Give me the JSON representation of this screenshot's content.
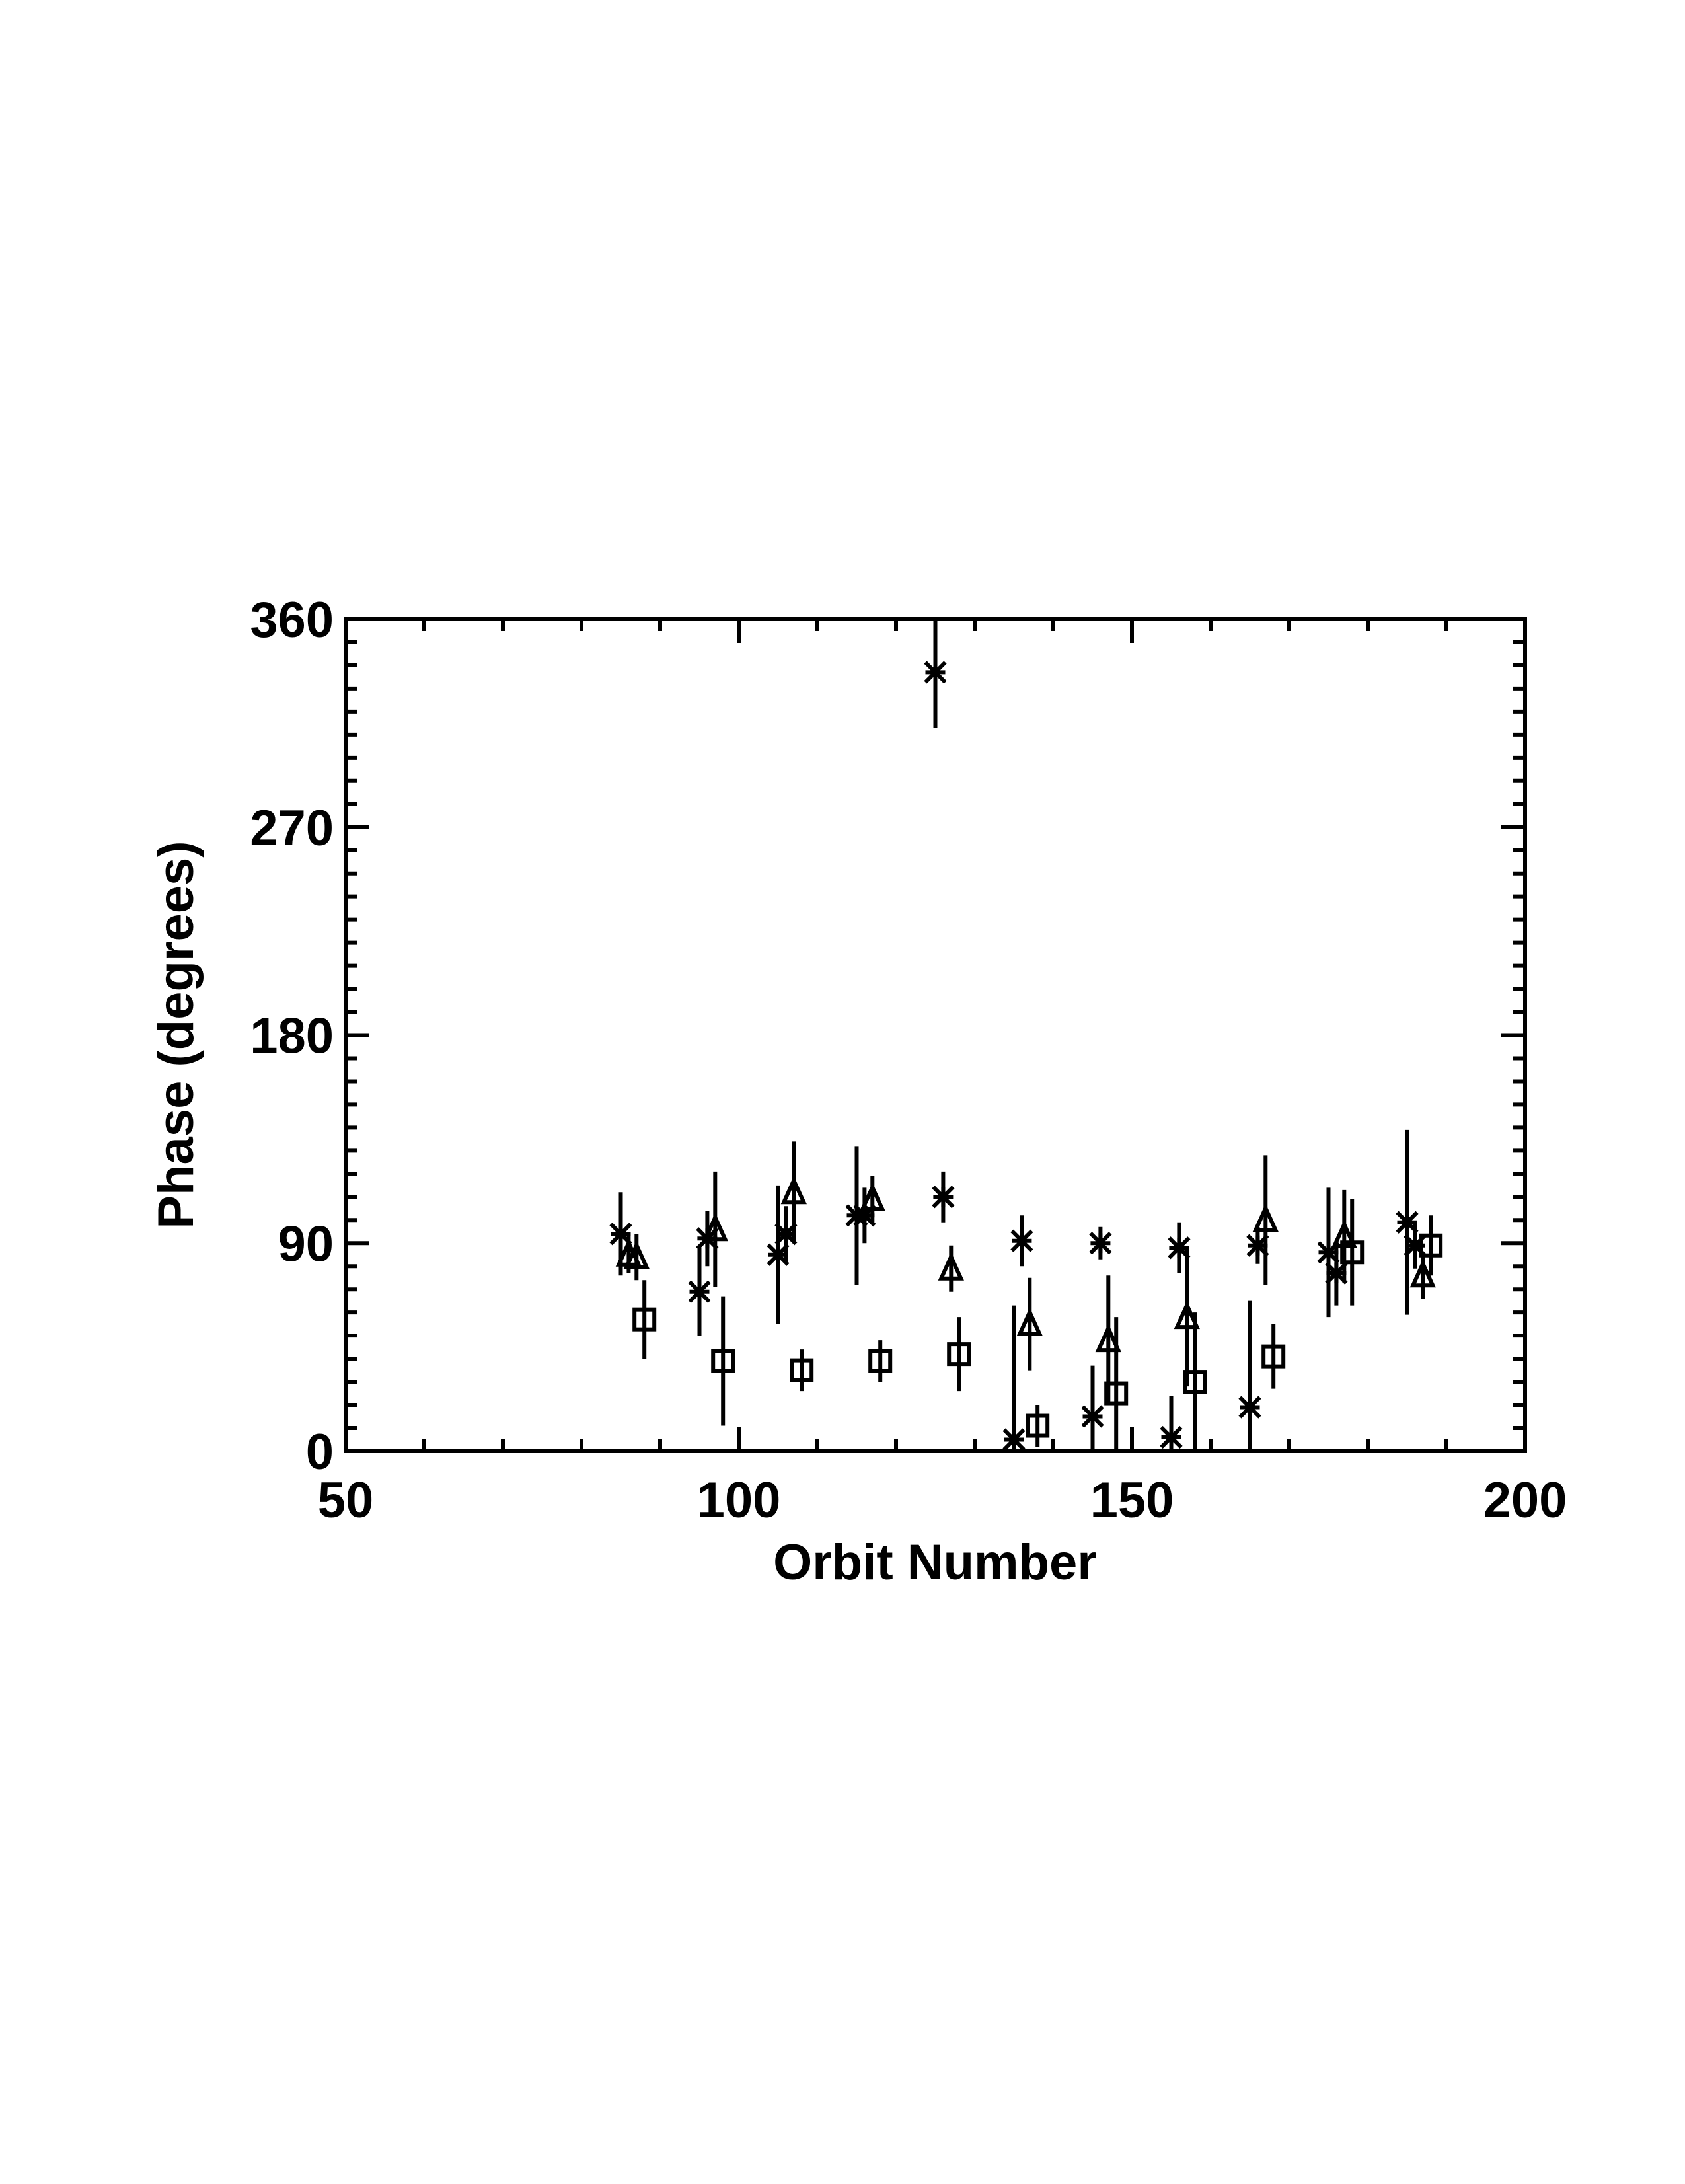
{
  "chart_data": {
    "type": "scatter",
    "x_label": "Orbit Number",
    "y_label": "Phase (degrees)",
    "xlim": [
      50,
      200
    ],
    "xticks": [
      50,
      100,
      150,
      200
    ],
    "ylim": [
      0,
      360
    ],
    "yticks": [
      0,
      90,
      180,
      270,
      360
    ],
    "series": [
      {
        "marker": "asterisk",
        "color": "#000000",
        "x": [
          85,
          95,
          96,
          105,
          106,
          115,
          116,
          125,
          126,
          135,
          136,
          145,
          146,
          155,
          156,
          165,
          166,
          175,
          176,
          185,
          186
        ],
        "values": [
          94,
          69,
          92,
          85,
          94,
          102,
          102,
          337,
          110,
          5,
          91,
          15,
          90,
          6,
          88,
          19,
          89,
          86,
          77,
          99,
          89
        ],
        "errors": [
          18,
          19,
          12,
          30,
          12,
          30,
          12,
          24,
          11,
          58,
          11,
          22,
          7,
          18,
          11,
          46,
          8,
          28,
          14,
          40,
          10
        ]
      },
      {
        "marker": "triangle",
        "color": "#000000",
        "x": [
          86,
          87,
          97,
          107,
          117,
          127,
          137,
          147,
          157,
          167,
          177,
          187
        ],
        "values": [
          85,
          84,
          96,
          112,
          109,
          79,
          55,
          48,
          58,
          100,
          93,
          76
        ],
        "errors": [
          8,
          10,
          25,
          22,
          10,
          10,
          20,
          28,
          30,
          28,
          20,
          10
        ]
      },
      {
        "marker": "square",
        "color": "#000000",
        "x": [
          88,
          98,
          108,
          118,
          128,
          138,
          148,
          158,
          168,
          178,
          188
        ],
        "values": [
          57,
          39,
          35,
          39,
          42,
          11,
          25,
          30,
          41,
          86,
          89
        ],
        "errors": [
          17,
          28,
          9,
          9,
          16,
          9,
          33,
          30,
          14,
          23,
          13
        ]
      }
    ]
  }
}
